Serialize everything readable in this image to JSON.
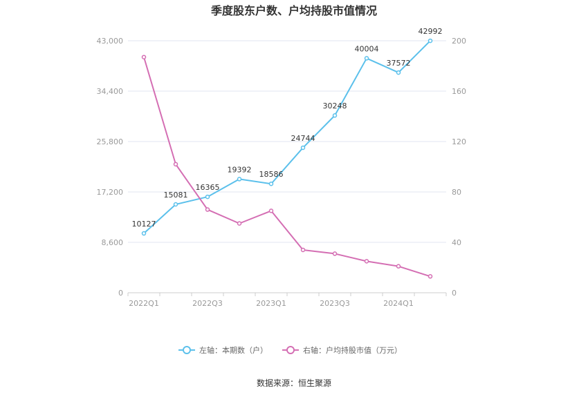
{
  "title": "季度股东户数、户均持股市值情况",
  "source": "数据来源：恒生聚源",
  "colors": {
    "left_series": "#5bc0eb",
    "right_series": "#d46eb3"
  },
  "chart_data": {
    "type": "line",
    "title": "季度股东户数、户均持股市值情况",
    "periods": [
      "2022Q1",
      "2022Q2",
      "2022Q3",
      "2022Q4",
      "2023Q1",
      "2023Q2",
      "2023Q3",
      "2023Q4",
      "2024Q1",
      "2024Q2"
    ],
    "x_tick_labels": [
      "2022Q1",
      "",
      "2022Q3",
      "",
      "2023Q1",
      "",
      "2023Q3",
      "",
      "2024Q1",
      ""
    ],
    "y_left": {
      "ticks": [
        0,
        8600,
        17200,
        25800,
        34400,
        43000
      ],
      "tick_labels": [
        "0",
        "8,600",
        "17,200",
        "25,800",
        "34,400",
        "43,000"
      ],
      "ylim": [
        0,
        43000
      ]
    },
    "y_right": {
      "ticks": [
        0,
        40,
        80,
        120,
        160,
        200
      ],
      "tick_labels": [
        "0",
        "40",
        "80",
        "120",
        "160",
        "200"
      ],
      "ylim": [
        0,
        200
      ]
    },
    "grid": true,
    "legend_position": "bottom",
    "series": [
      {
        "name": "左轴：本期数（户）",
        "axis": "left",
        "color": "#5bc0eb",
        "values": [
          10127,
          15081,
          16365,
          19392,
          18586,
          24744,
          30248,
          40004,
          37572,
          42992
        ],
        "labels": [
          "10127",
          "15081",
          "16365",
          "19392",
          "18586",
          "24744",
          "30248",
          "40004",
          "37572",
          "42992"
        ]
      },
      {
        "name": "右轴：户均持股市值（万元）",
        "axis": "right",
        "color": "#d46eb3",
        "values": [
          187,
          102,
          66,
          55,
          65,
          34,
          31,
          25,
          21,
          13
        ]
      }
    ]
  }
}
